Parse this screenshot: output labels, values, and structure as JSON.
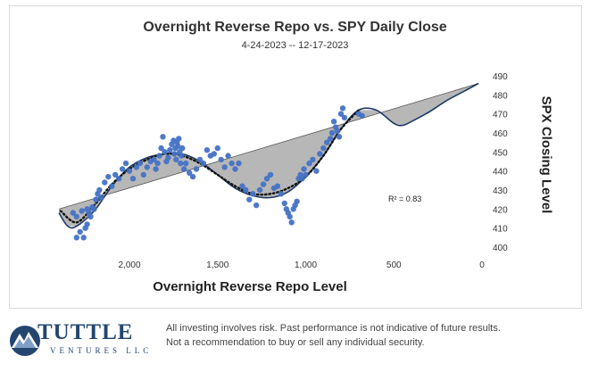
{
  "chart_data": {
    "type": "scatter",
    "title": "Overnight Reverse Repo vs. SPY Daily Close",
    "subtitle": "4-24-2023 -- 12-17-2023",
    "xlabel": "Overnight Reverse Repo Level",
    "ylabel": "SPX Closing Level",
    "x_reversed": true,
    "xlim": [
      0,
      2400
    ],
    "ylim": [
      400,
      490
    ],
    "x_ticks": [
      2000,
      1500,
      1000,
      500,
      0
    ],
    "x_tick_labels": [
      "2,000",
      "1,500",
      "1,000",
      "500",
      "0"
    ],
    "y_ticks": [
      400,
      410,
      420,
      430,
      440,
      450,
      460,
      470,
      480,
      490
    ],
    "y_tick_labels": [
      "400",
      "410",
      "420",
      "430",
      "440",
      "450",
      "460",
      "470",
      "480",
      "490"
    ],
    "annotation": "R² = 0.83",
    "point_color": "#4472c4",
    "points": [
      [
        2300,
        405
      ],
      [
        2280,
        408
      ],
      [
        2260,
        405
      ],
      [
        2250,
        410
      ],
      [
        2240,
        412
      ],
      [
        2320,
        418
      ],
      [
        2300,
        416
      ],
      [
        2270,
        419
      ],
      [
        2240,
        420
      ],
      [
        2230,
        418
      ],
      [
        2220,
        416
      ],
      [
        2210,
        421
      ],
      [
        2200,
        420
      ],
      [
        2190,
        425
      ],
      [
        2180,
        428
      ],
      [
        2170,
        430
      ],
      [
        2160,
        426
      ],
      [
        2140,
        434
      ],
      [
        2120,
        437
      ],
      [
        2100,
        432
      ],
      [
        2080,
        438
      ],
      [
        2060,
        436
      ],
      [
        2040,
        441
      ],
      [
        2020,
        444
      ],
      [
        2000,
        440
      ],
      [
        1980,
        436
      ],
      [
        1960,
        442
      ],
      [
        1940,
        444
      ],
      [
        1920,
        438
      ],
      [
        1900,
        442
      ],
      [
        1880,
        445
      ],
      [
        1860,
        446
      ],
      [
        1850,
        441
      ],
      [
        1840,
        444
      ],
      [
        1830,
        448
      ],
      [
        1820,
        452
      ],
      [
        1810,
        458
      ],
      [
        1800,
        450
      ],
      [
        1790,
        445
      ],
      [
        1780,
        447
      ],
      [
        1770,
        451
      ],
      [
        1760,
        454
      ],
      [
        1750,
        456
      ],
      [
        1745,
        449
      ],
      [
        1740,
        452
      ],
      [
        1735,
        446
      ],
      [
        1730,
        455
      ],
      [
        1725,
        453
      ],
      [
        1720,
        457
      ],
      [
        1715,
        450
      ],
      [
        1710,
        444
      ],
      [
        1705,
        448
      ],
      [
        1700,
        452
      ],
      [
        1690,
        441
      ],
      [
        1680,
        444
      ],
      [
        1660,
        439
      ],
      [
        1640,
        437
      ],
      [
        1620,
        441
      ],
      [
        1600,
        446
      ],
      [
        1580,
        444
      ],
      [
        1560,
        451
      ],
      [
        1540,
        448
      ],
      [
        1520,
        449
      ],
      [
        1500,
        452
      ],
      [
        1480,
        446
      ],
      [
        1460,
        442
      ],
      [
        1440,
        448
      ],
      [
        1420,
        444
      ],
      [
        1400,
        441
      ],
      [
        1380,
        444
      ],
      [
        1360,
        432
      ],
      [
        1340,
        430
      ],
      [
        1320,
        425
      ],
      [
        1300,
        428
      ],
      [
        1280,
        422
      ],
      [
        1260,
        430
      ],
      [
        1240,
        433
      ],
      [
        1220,
        436
      ],
      [
        1200,
        438
      ],
      [
        1180,
        431
      ],
      [
        1160,
        432
      ],
      [
        1140,
        428
      ],
      [
        1120,
        423
      ],
      [
        1110,
        420
      ],
      [
        1100,
        418
      ],
      [
        1090,
        416
      ],
      [
        1080,
        413
      ],
      [
        1070,
        420
      ],
      [
        1060,
        422
      ],
      [
        1050,
        424
      ],
      [
        1040,
        436
      ],
      [
        1030,
        438
      ],
      [
        1020,
        436
      ],
      [
        1010,
        441
      ],
      [
        1000,
        438
      ],
      [
        980,
        444
      ],
      [
        960,
        446
      ],
      [
        940,
        440
      ],
      [
        920,
        449
      ],
      [
        900,
        452
      ],
      [
        880,
        455
      ],
      [
        860,
        457
      ],
      [
        850,
        460
      ],
      [
        840,
        466
      ],
      [
        830,
        463
      ],
      [
        820,
        461
      ],
      [
        810,
        458
      ],
      [
        800,
        470
      ],
      [
        790,
        473
      ],
      [
        780,
        468
      ],
      [
        700,
        470
      ],
      [
        680,
        469
      ]
    ],
    "trend_line": {
      "style": "dotted",
      "color": "#111111",
      "points": [
        [
          2390,
          419
        ],
        [
          2300,
          413
        ],
        [
          2200,
          422
        ],
        [
          2100,
          433
        ],
        [
          2000,
          441
        ],
        [
          1900,
          446
        ],
        [
          1800,
          449
        ],
        [
          1700,
          448
        ],
        [
          1600,
          444
        ],
        [
          1500,
          438
        ],
        [
          1400,
          432
        ],
        [
          1300,
          428
        ],
        [
          1200,
          428
        ],
        [
          1100,
          431
        ],
        [
          1000,
          437
        ],
        [
          900,
          448
        ],
        [
          800,
          462
        ],
        [
          700,
          472
        ]
      ]
    },
    "fit_line": {
      "style": "solid",
      "color": "#1f3864",
      "points": [
        [
          2400,
          418
        ],
        [
          2350,
          411
        ],
        [
          2300,
          411
        ],
        [
          2200,
          419
        ],
        [
          2100,
          432
        ],
        [
          2000,
          442
        ],
        [
          1900,
          447
        ],
        [
          1800,
          449
        ],
        [
          1700,
          449
        ],
        [
          1600,
          445
        ],
        [
          1500,
          438
        ],
        [
          1400,
          431
        ],
        [
          1300,
          427
        ],
        [
          1200,
          426
        ],
        [
          1100,
          429
        ],
        [
          1000,
          437
        ],
        [
          900,
          448
        ],
        [
          800,
          462
        ],
        [
          700,
          472
        ],
        [
          600,
          472
        ],
        [
          500,
          465
        ],
        [
          450,
          464
        ],
        [
          400,
          466
        ],
        [
          300,
          471
        ],
        [
          200,
          477
        ],
        [
          100,
          482
        ],
        [
          20,
          486
        ]
      ]
    },
    "linear_trend": {
      "color": "#555555",
      "points": [
        [
          2400,
          420
        ],
        [
          20,
          486
        ]
      ]
    },
    "shaded_area_color": "#b7b7b7"
  },
  "footer": {
    "logo_name": "TUTTLE",
    "logo_subtitle": "VENTURES LLC",
    "logo_icon": "mountain-emblem-icon",
    "disclaimer_line1": "All investing involves risk. Past performance is not indicative of future results.",
    "disclaimer_line2": "Not a recommendation to buy or sell any individual security."
  }
}
